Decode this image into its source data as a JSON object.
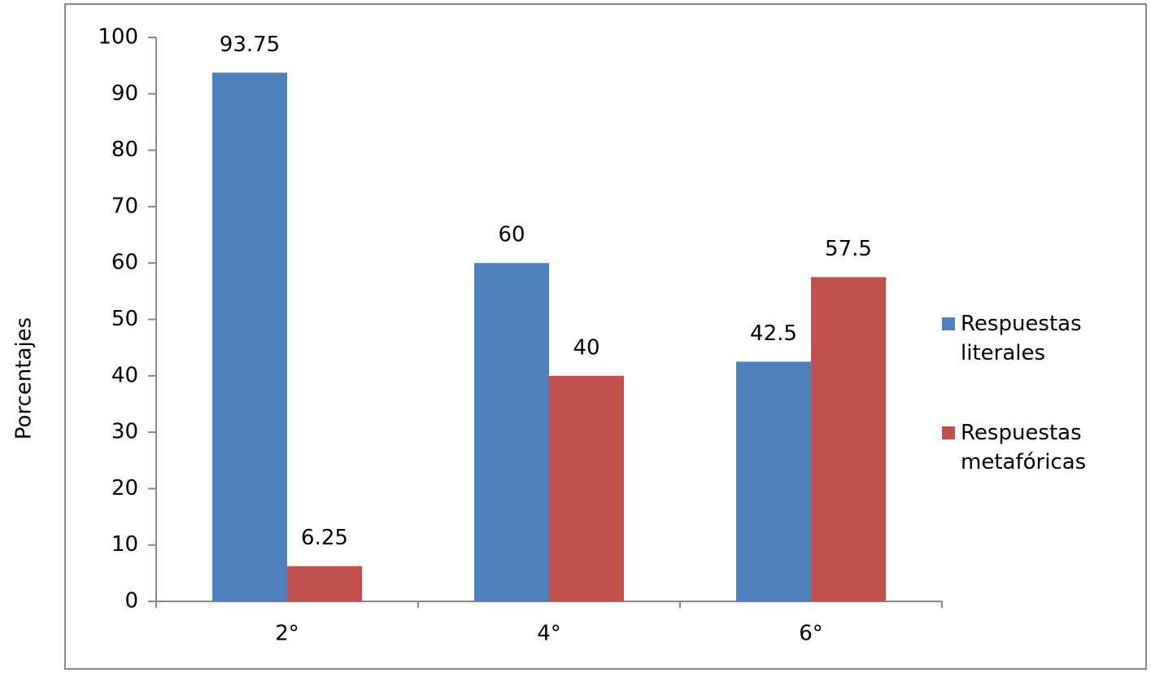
{
  "chart_data": {
    "type": "bar",
    "y_label": "Porcentajes",
    "categories": [
      "2°",
      "4°",
      "6°"
    ],
    "series": [
      {
        "name": "Respuestas literales",
        "color": "#4f81bd",
        "values": [
          93.75,
          60,
          42.5
        ]
      },
      {
        "name": "Respuestas metafóricas",
        "color": "#c0504d",
        "values": [
          6.25,
          40,
          57.5
        ]
      }
    ],
    "ylim": [
      0,
      100
    ],
    "yticks": [
      0,
      10,
      20,
      30,
      40,
      50,
      60,
      70,
      80,
      90,
      100
    ],
    "legend": "right",
    "grid": false
  }
}
